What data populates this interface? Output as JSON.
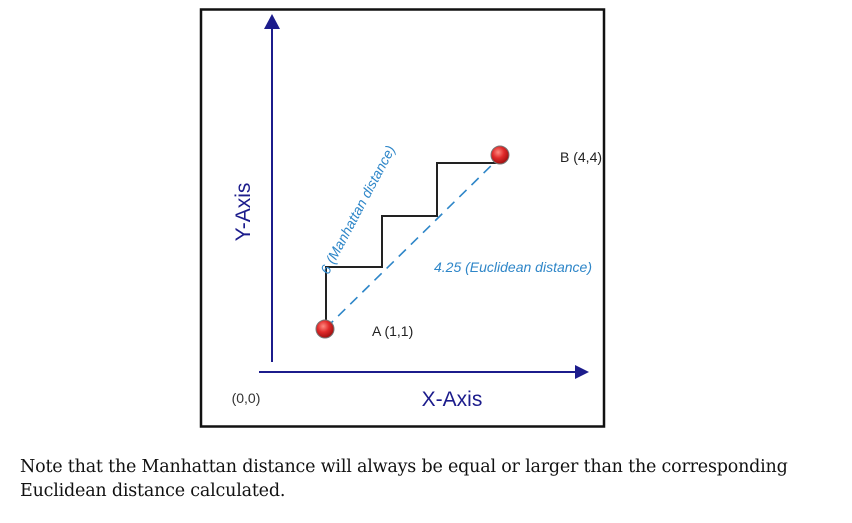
{
  "diagram": {
    "y_axis_label": "Y-Axis",
    "x_axis_label": "X-Axis",
    "origin_label": "(0,0)",
    "point_a_label": "A (1,1)",
    "point_b_label": "B (4,4)",
    "manhattan_label": "6 (Manhattan distance)",
    "euclidean_label": "4.25 (Euclidean distance)",
    "colors": {
      "axis": "#1c1c8c",
      "distance_label": "#2e86c8",
      "point": "#e02a2a",
      "path": "#222222"
    }
  },
  "caption": {
    "line1": "Note that the Manhattan distance will always be equal or larger than the corresponding",
    "line2": "Euclidean distance calculated."
  }
}
